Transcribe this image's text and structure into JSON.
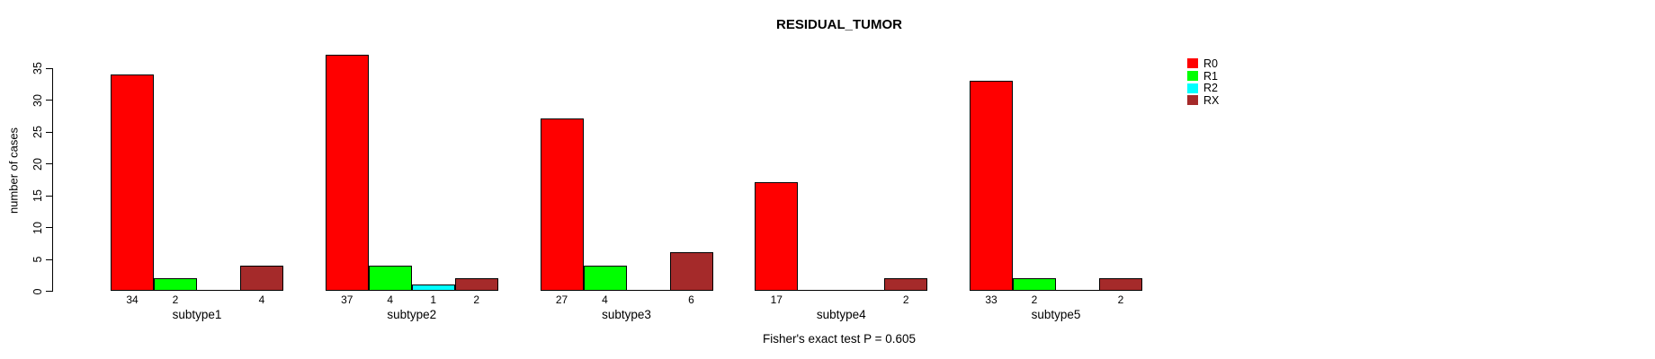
{
  "chart_data": {
    "type": "bar",
    "title": "RESIDUAL_TUMOR",
    "ylabel": "number of cases",
    "xlabel": "",
    "categories": [
      "subtype1",
      "subtype2",
      "subtype3",
      "subtype4",
      "subtype5"
    ],
    "series": [
      {
        "name": "R0",
        "color": "#FF0000",
        "values": [
          34,
          37,
          27,
          17,
          33
        ]
      },
      {
        "name": "R1",
        "color": "#00FF00",
        "values": [
          2,
          4,
          4,
          0,
          2
        ]
      },
      {
        "name": "R2",
        "color": "#00FFFF",
        "values": [
          0,
          1,
          0,
          0,
          0
        ]
      },
      {
        "name": "RX",
        "color": "#A52A2A",
        "values": [
          4,
          2,
          6,
          2,
          2
        ]
      }
    ],
    "y_ticks": [
      0,
      5,
      10,
      15,
      20,
      25,
      30,
      35
    ],
    "ylim": [
      0,
      37
    ],
    "bar_value_labels_shown": true,
    "zero_values_unlabeled": true,
    "grid": false,
    "legend_position": "right",
    "annotation": "Fisher's exact test P = 0.605",
    "axis_color": "#000000",
    "bar_border_color": "#000000",
    "background_color": "#FFFFFF"
  }
}
